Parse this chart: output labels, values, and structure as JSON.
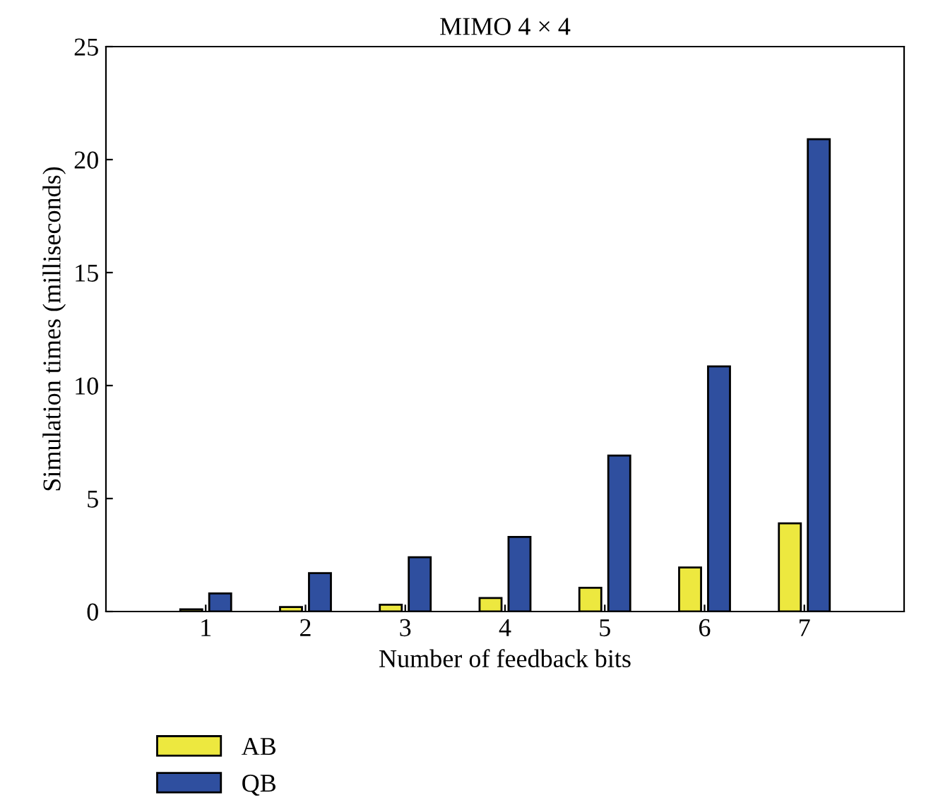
{
  "chart_data": {
    "type": "bar",
    "title": "MIMO 4 × 4",
    "xlabel": "Number of feedback bits",
    "ylabel": "Simulation times (milliseconds)",
    "categories": [
      "1",
      "2",
      "3",
      "4",
      "5",
      "6",
      "7"
    ],
    "series": [
      {
        "name": "AB",
        "color": "#ede83f",
        "values": [
          0.1,
          0.2,
          0.3,
          0.6,
          1.05,
          1.95,
          3.9
        ]
      },
      {
        "name": "QB",
        "color": "#2f4f9f",
        "values": [
          0.8,
          1.7,
          2.4,
          3.3,
          6.9,
          10.85,
          20.9
        ]
      }
    ],
    "ylim": [
      0,
      25
    ],
    "yticks": [
      0,
      5,
      10,
      15,
      20,
      25
    ],
    "grid": false,
    "legend": "bottom left"
  }
}
